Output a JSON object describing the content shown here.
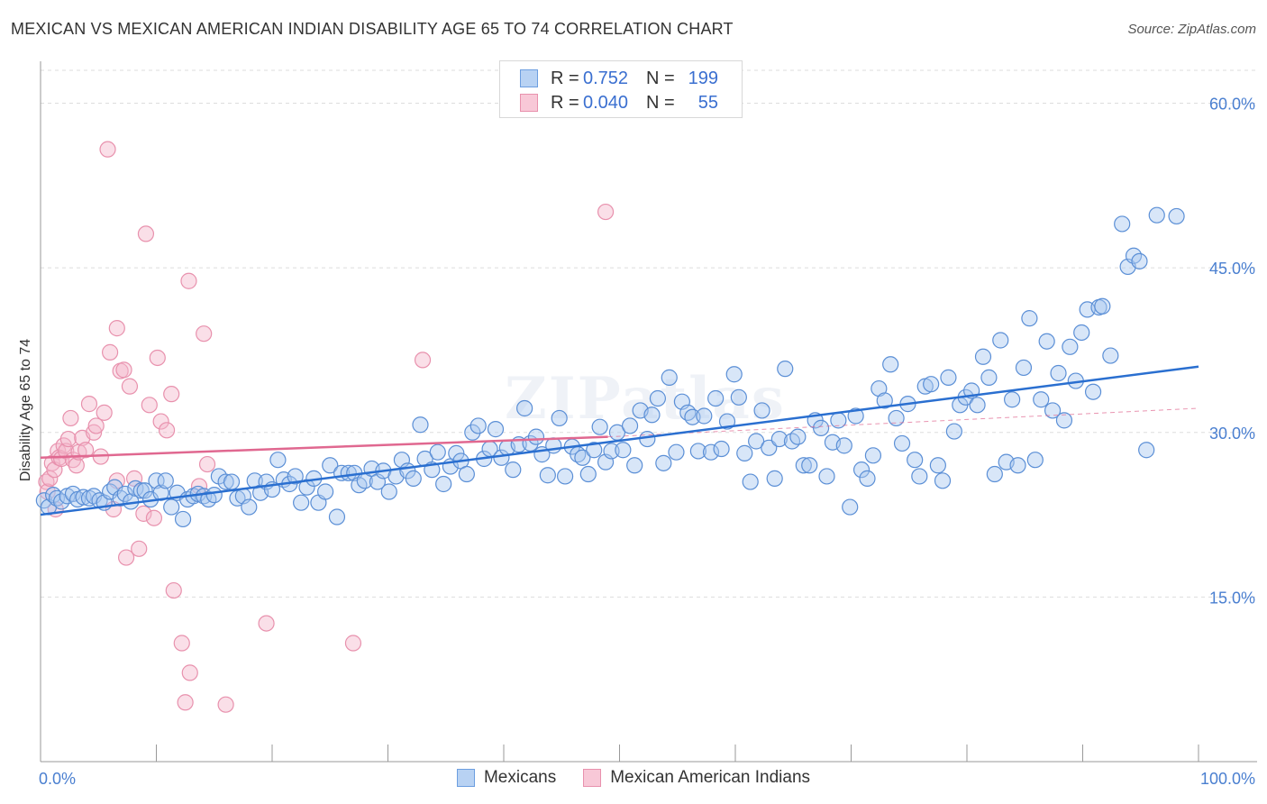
{
  "header": {
    "title": "MEXICAN VS MEXICAN AMERICAN INDIAN DISABILITY AGE 65 TO 74 CORRELATION CHART",
    "source": "Source: ZipAtlas.com"
  },
  "watermark": "ZIPatlas",
  "legend_top": {
    "rows": [
      {
        "r_label": "R =",
        "r_value": "0.752",
        "n_label": "N =",
        "n_value": "199"
      },
      {
        "r_label": "R =",
        "r_value": "0.040",
        "n_label": "N =",
        "n_value": "55"
      }
    ]
  },
  "legend_bottom": {
    "items": [
      "Mexicans",
      "Mexican American Indians"
    ]
  },
  "colors": {
    "blue_fill": "#a8c8f0",
    "blue_stroke": "#5b8fd6",
    "blue_line": "#2a6fd0",
    "pink_fill": "#f5b8cb",
    "pink_stroke": "#e891ad",
    "pink_line": "#e06890",
    "tick_text": "#4a7fd0",
    "grid": "#dddddd"
  },
  "chart_data": {
    "type": "scatter",
    "title": "MEXICAN VS MEXICAN AMERICAN INDIAN DISABILITY AGE 65 TO 74 CORRELATION CHART",
    "xlabel": "",
    "ylabel": "Disability Age 65 to 74",
    "xlim": [
      0,
      100
    ],
    "ylim": [
      0,
      63
    ],
    "x_tick_labels": [
      "0.0%",
      "100.0%"
    ],
    "y_ticks": [
      15,
      30,
      45,
      60
    ],
    "y_tick_labels": [
      "15.0%",
      "30.0%",
      "45.0%",
      "60.0%"
    ],
    "grid": true,
    "legend_position": "top-center",
    "series": [
      {
        "name": "Mexicans",
        "color": "#a8c8f0",
        "trend": {
          "x": [
            0,
            100
          ],
          "y": [
            22.5,
            36.0
          ]
        },
        "points": [
          [
            0.3,
            23.8
          ],
          [
            0.7,
            23.2
          ],
          [
            1.1,
            24.3
          ],
          [
            1.4,
            24.0
          ],
          [
            1.8,
            23.7
          ],
          [
            2.3,
            24.2
          ],
          [
            2.8,
            24.4
          ],
          [
            3.2,
            23.9
          ],
          [
            3.7,
            24.1
          ],
          [
            4.2,
            24.0
          ],
          [
            4.6,
            24.2
          ],
          [
            5.1,
            23.8
          ],
          [
            5.5,
            23.6
          ],
          [
            6.0,
            24.6
          ],
          [
            6.4,
            25.0
          ],
          [
            6.9,
            24.0
          ],
          [
            7.3,
            24.4
          ],
          [
            7.8,
            23.7
          ],
          [
            8.2,
            24.9
          ],
          [
            8.7,
            24.7
          ],
          [
            9.0,
            24.7
          ],
          [
            9.5,
            23.9
          ],
          [
            10.0,
            25.6
          ],
          [
            10.4,
            24.5
          ],
          [
            10.8,
            25.6
          ],
          [
            11.3,
            23.2
          ],
          [
            11.8,
            24.5
          ],
          [
            12.3,
            22.1
          ],
          [
            12.7,
            23.9
          ],
          [
            13.2,
            24.2
          ],
          [
            13.6,
            24.4
          ],
          [
            14.1,
            24.2
          ],
          [
            14.5,
            23.9
          ],
          [
            15.0,
            24.3
          ],
          [
            15.4,
            26.0
          ],
          [
            16.0,
            25.5
          ],
          [
            16.5,
            25.5
          ],
          [
            17.0,
            24.0
          ],
          [
            17.5,
            24.2
          ],
          [
            18.0,
            23.2
          ],
          [
            18.5,
            25.6
          ],
          [
            19.0,
            24.5
          ],
          [
            19.5,
            25.5
          ],
          [
            20.0,
            24.8
          ],
          [
            20.5,
            27.5
          ],
          [
            21.0,
            25.7
          ],
          [
            21.5,
            25.3
          ],
          [
            22.0,
            26.0
          ],
          [
            22.5,
            23.6
          ],
          [
            23.0,
            25.0
          ],
          [
            23.6,
            25.8
          ],
          [
            24.0,
            23.6
          ],
          [
            24.6,
            24.6
          ],
          [
            25.0,
            27.0
          ],
          [
            25.6,
            22.3
          ],
          [
            26.0,
            26.3
          ],
          [
            26.6,
            26.3
          ],
          [
            27.1,
            26.3
          ],
          [
            27.5,
            25.2
          ],
          [
            28.0,
            25.6
          ],
          [
            28.6,
            26.7
          ],
          [
            29.1,
            25.5
          ],
          [
            29.6,
            26.5
          ],
          [
            30.1,
            24.6
          ],
          [
            30.7,
            26.0
          ],
          [
            31.2,
            27.5
          ],
          [
            31.7,
            26.5
          ],
          [
            32.2,
            25.8
          ],
          [
            32.8,
            30.7
          ],
          [
            33.2,
            27.6
          ],
          [
            33.8,
            26.6
          ],
          [
            34.3,
            28.2
          ],
          [
            34.8,
            25.3
          ],
          [
            35.4,
            26.9
          ],
          [
            35.9,
            28.1
          ],
          [
            36.3,
            27.4
          ],
          [
            36.8,
            26.2
          ],
          [
            37.3,
            30.0
          ],
          [
            37.8,
            30.6
          ],
          [
            38.3,
            27.6
          ],
          [
            38.8,
            28.5
          ],
          [
            39.3,
            30.3
          ],
          [
            39.8,
            27.7
          ],
          [
            40.3,
            28.6
          ],
          [
            40.8,
            26.6
          ],
          [
            41.3,
            28.9
          ],
          [
            41.8,
            32.2
          ],
          [
            42.3,
            29.0
          ],
          [
            42.8,
            29.6
          ],
          [
            43.3,
            28.0
          ],
          [
            43.8,
            26.1
          ],
          [
            44.3,
            28.8
          ],
          [
            44.8,
            31.3
          ],
          [
            45.3,
            26.0
          ],
          [
            45.9,
            28.7
          ],
          [
            46.4,
            28.0
          ],
          [
            46.8,
            27.7
          ],
          [
            47.3,
            26.2
          ],
          [
            47.8,
            28.4
          ],
          [
            48.3,
            30.5
          ],
          [
            48.8,
            27.3
          ],
          [
            49.3,
            28.3
          ],
          [
            49.8,
            30.0
          ],
          [
            50.3,
            28.4
          ],
          [
            50.9,
            30.6
          ],
          [
            51.3,
            27.0
          ],
          [
            51.8,
            32.0
          ],
          [
            52.4,
            29.4
          ],
          [
            52.8,
            31.6
          ],
          [
            53.3,
            33.1
          ],
          [
            53.8,
            27.2
          ],
          [
            54.3,
            35.0
          ],
          [
            54.9,
            28.2
          ],
          [
            55.4,
            32.8
          ],
          [
            55.9,
            31.8
          ],
          [
            56.3,
            31.4
          ],
          [
            56.8,
            28.3
          ],
          [
            57.3,
            31.5
          ],
          [
            57.9,
            28.2
          ],
          [
            58.3,
            33.1
          ],
          [
            58.8,
            28.5
          ],
          [
            59.3,
            31.0
          ],
          [
            59.9,
            35.3
          ],
          [
            60.3,
            33.2
          ],
          [
            60.8,
            28.1
          ],
          [
            61.3,
            25.5
          ],
          [
            61.8,
            29.2
          ],
          [
            62.3,
            32.0
          ],
          [
            62.9,
            28.6
          ],
          [
            63.4,
            25.8
          ],
          [
            63.8,
            29.4
          ],
          [
            64.3,
            35.8
          ],
          [
            64.9,
            29.2
          ],
          [
            65.4,
            29.6
          ],
          [
            65.9,
            27.0
          ],
          [
            66.4,
            27.0
          ],
          [
            66.9,
            31.1
          ],
          [
            67.4,
            30.4
          ],
          [
            67.9,
            26.0
          ],
          [
            68.4,
            29.1
          ],
          [
            68.9,
            31.1
          ],
          [
            69.4,
            28.8
          ],
          [
            69.9,
            23.2
          ],
          [
            70.4,
            31.5
          ],
          [
            70.9,
            26.6
          ],
          [
            71.4,
            25.8
          ],
          [
            71.9,
            27.9
          ],
          [
            72.4,
            34.0
          ],
          [
            72.9,
            32.9
          ],
          [
            73.4,
            36.2
          ],
          [
            73.9,
            31.3
          ],
          [
            74.4,
            29.0
          ],
          [
            74.9,
            32.6
          ],
          [
            75.5,
            27.5
          ],
          [
            75.9,
            26.0
          ],
          [
            76.4,
            34.2
          ],
          [
            76.9,
            34.4
          ],
          [
            77.5,
            27.0
          ],
          [
            77.9,
            25.6
          ],
          [
            78.4,
            35.0
          ],
          [
            78.9,
            30.1
          ],
          [
            79.4,
            32.5
          ],
          [
            79.9,
            33.2
          ],
          [
            80.4,
            33.8
          ],
          [
            80.9,
            32.5
          ],
          [
            81.4,
            36.9
          ],
          [
            81.9,
            35.0
          ],
          [
            82.4,
            26.2
          ],
          [
            82.9,
            38.4
          ],
          [
            83.4,
            27.3
          ],
          [
            83.9,
            33.0
          ],
          [
            84.4,
            27.0
          ],
          [
            84.9,
            35.9
          ],
          [
            85.4,
            40.4
          ],
          [
            85.9,
            27.5
          ],
          [
            86.4,
            33.0
          ],
          [
            86.9,
            38.3
          ],
          [
            87.4,
            32.0
          ],
          [
            87.9,
            35.4
          ],
          [
            88.4,
            31.1
          ],
          [
            88.9,
            37.8
          ],
          [
            89.4,
            34.7
          ],
          [
            89.9,
            39.1
          ],
          [
            90.4,
            41.2
          ],
          [
            90.9,
            33.7
          ],
          [
            91.4,
            41.4
          ],
          [
            91.7,
            41.5
          ],
          [
            92.4,
            37.0
          ],
          [
            93.4,
            49.0
          ],
          [
            93.9,
            45.1
          ],
          [
            94.4,
            46.1
          ],
          [
            94.9,
            45.6
          ],
          [
            95.5,
            28.4
          ],
          [
            96.4,
            49.8
          ],
          [
            98.1,
            49.7
          ]
        ]
      },
      {
        "name": "Mexican American Indians",
        "color": "#f5b8cb",
        "trend": {
          "x": [
            0,
            49
          ],
          "y": [
            27.7,
            29.6
          ]
        },
        "trend_dashed": {
          "x": [
            49,
            100
          ],
          "y": [
            29.6,
            32.2
          ]
        },
        "points": [
          [
            0.5,
            25.5
          ],
          [
            0.6,
            24.6
          ],
          [
            0.8,
            25.8
          ],
          [
            1.0,
            27.2
          ],
          [
            1.2,
            26.6
          ],
          [
            1.3,
            23.0
          ],
          [
            1.5,
            28.3
          ],
          [
            1.6,
            27.7
          ],
          [
            1.8,
            27.6
          ],
          [
            2.0,
            28.8
          ],
          [
            2.2,
            28.3
          ],
          [
            2.4,
            29.4
          ],
          [
            2.6,
            31.3
          ],
          [
            2.8,
            27.5
          ],
          [
            3.1,
            27.0
          ],
          [
            3.3,
            28.2
          ],
          [
            3.6,
            29.5
          ],
          [
            3.9,
            28.4
          ],
          [
            4.2,
            32.6
          ],
          [
            4.6,
            30.0
          ],
          [
            4.8,
            30.6
          ],
          [
            5.2,
            27.8
          ],
          [
            5.5,
            31.8
          ],
          [
            5.8,
            55.8
          ],
          [
            6.0,
            37.3
          ],
          [
            6.3,
            23.0
          ],
          [
            6.6,
            25.6
          ],
          [
            6.9,
            35.6
          ],
          [
            7.2,
            35.7
          ],
          [
            7.4,
            18.6
          ],
          [
            7.7,
            34.2
          ],
          [
            8.1,
            25.8
          ],
          [
            8.5,
            19.4
          ],
          [
            8.9,
            22.6
          ],
          [
            9.1,
            48.1
          ],
          [
            9.4,
            32.5
          ],
          [
            9.8,
            22.2
          ],
          [
            10.1,
            36.8
          ],
          [
            10.4,
            31.0
          ],
          [
            10.9,
            30.2
          ],
          [
            11.3,
            33.5
          ],
          [
            11.5,
            15.6
          ],
          [
            12.2,
            10.8
          ],
          [
            12.8,
            43.8
          ],
          [
            12.9,
            8.1
          ],
          [
            13.7,
            25.1
          ],
          [
            14.1,
            39.0
          ],
          [
            14.4,
            27.1
          ],
          [
            16.0,
            5.2
          ],
          [
            19.5,
            12.6
          ],
          [
            27.0,
            10.8
          ],
          [
            33.0,
            36.6
          ],
          [
            48.8,
            50.1
          ],
          [
            12.5,
            5.4
          ],
          [
            6.6,
            39.5
          ]
        ]
      }
    ]
  }
}
